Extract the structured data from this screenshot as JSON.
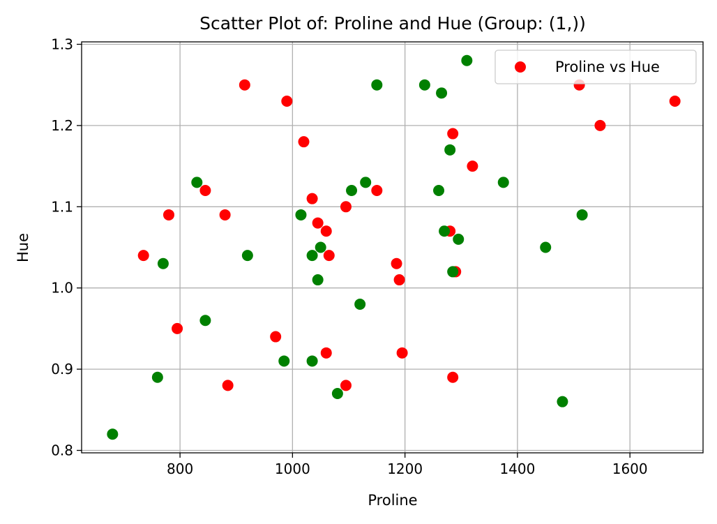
{
  "chart_data": {
    "type": "scatter",
    "title": "Scatter Plot of: Proline and Hue (Group: (1,))",
    "xlabel": "Proline",
    "ylabel": "Hue",
    "xlim": [
      625,
      1730
    ],
    "ylim": [
      0.797,
      1.303
    ],
    "xticks": [
      800,
      1000,
      1200,
      1400,
      1600
    ],
    "xtick_labels": [
      "800",
      "1000",
      "1200",
      "1400",
      "1600"
    ],
    "yticks": [
      0.8,
      0.9,
      1.0,
      1.1,
      1.2,
      1.3
    ],
    "ytick_labels": [
      "0.8",
      "0.9",
      "1.0",
      "1.1",
      "1.2",
      "1.3"
    ],
    "grid": true,
    "legend": {
      "position": "top-right",
      "entries": [
        {
          "label": "Proline vs Hue",
          "color": "#ff0000"
        }
      ]
    },
    "series": [
      {
        "name": "Proline vs Hue",
        "color": "#ff0000",
        "points": [
          [
            735,
            1.04
          ],
          [
            780,
            1.09
          ],
          [
            795,
            0.95
          ],
          [
            845,
            1.12
          ],
          [
            880,
            1.09
          ],
          [
            885,
            0.88
          ],
          [
            915,
            1.25
          ],
          [
            970,
            0.94
          ],
          [
            990,
            1.23
          ],
          [
            1020,
            1.18
          ],
          [
            1035,
            1.11
          ],
          [
            1045,
            1.08
          ],
          [
            1060,
            1.07
          ],
          [
            1060,
            0.92
          ],
          [
            1065,
            1.04
          ],
          [
            1095,
            1.1
          ],
          [
            1095,
            0.88
          ],
          [
            1150,
            1.12
          ],
          [
            1185,
            1.03
          ],
          [
            1190,
            1.01
          ],
          [
            1195,
            0.92
          ],
          [
            1280,
            1.07
          ],
          [
            1285,
            1.19
          ],
          [
            1285,
            0.89
          ],
          [
            1290,
            1.02
          ],
          [
            1320,
            1.15
          ],
          [
            1510,
            1.25
          ],
          [
            1547,
            1.2
          ],
          [
            1680,
            1.23
          ]
        ]
      },
      {
        "color": "#008000",
        "points": [
          [
            680,
            0.82
          ],
          [
            760,
            0.89
          ],
          [
            770,
            1.03
          ],
          [
            830,
            1.13
          ],
          [
            845,
            0.96
          ],
          [
            920,
            1.04
          ],
          [
            985,
            0.91
          ],
          [
            1015,
            1.09
          ],
          [
            1035,
            1.04
          ],
          [
            1035,
            0.91
          ],
          [
            1045,
            1.01
          ],
          [
            1050,
            1.05
          ],
          [
            1080,
            0.87
          ],
          [
            1105,
            1.12
          ],
          [
            1120,
            0.98
          ],
          [
            1130,
            1.13
          ],
          [
            1150,
            1.25
          ],
          [
            1235,
            1.25
          ],
          [
            1260,
            1.12
          ],
          [
            1265,
            1.24
          ],
          [
            1270,
            1.07
          ],
          [
            1280,
            1.17
          ],
          [
            1285,
            1.02
          ],
          [
            1295,
            1.06
          ],
          [
            1310,
            1.28
          ],
          [
            1375,
            1.13
          ],
          [
            1450,
            1.05
          ],
          [
            1480,
            0.86
          ],
          [
            1515,
            1.09
          ]
        ]
      }
    ]
  }
}
